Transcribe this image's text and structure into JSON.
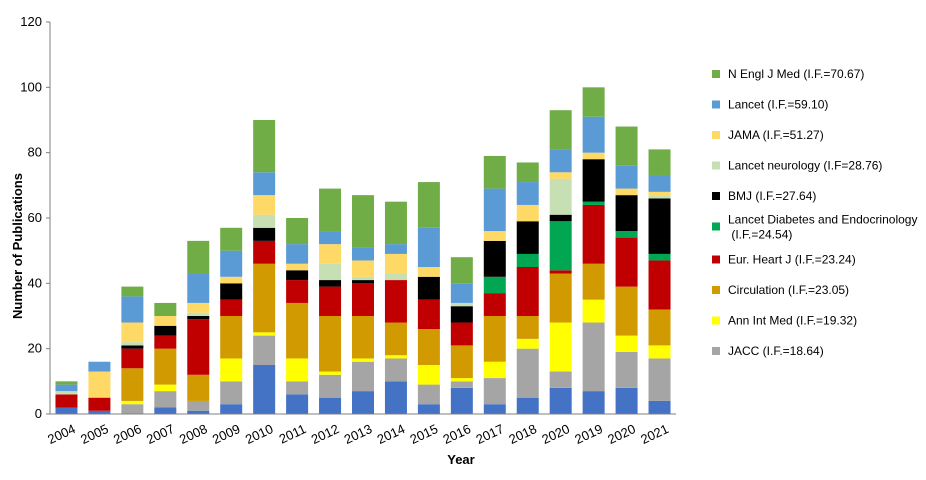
{
  "chart_data": {
    "type": "bar",
    "stacked": true,
    "xlabel": "Year",
    "ylabel": "Number of Publications",
    "ylim": [
      0,
      120
    ],
    "yticks": [
      0,
      20,
      40,
      60,
      80,
      100,
      120
    ],
    "grid": false,
    "legend_position": "right",
    "categories": [
      "2004",
      "2005",
      "2006",
      "2007",
      "2008",
      "2009",
      "2010",
      "2011",
      "2012",
      "2013",
      "2014",
      "2015",
      "2016",
      "2017",
      "2018",
      "2020",
      "2019",
      "2020",
      "2021"
    ],
    "series": [
      {
        "name": "JACC (I.F.=18.64)",
        "color": "#a5a5a5",
        "values": [
          0,
          0,
          3,
          5,
          3,
          7,
          9,
          4,
          7,
          9,
          7,
          6,
          2,
          8,
          15,
          5,
          21,
          11,
          13
        ]
      },
      {
        "name": "Ann Int Med (I.F.=19.32)",
        "color": "#ffff00",
        "values": [
          0,
          0,
          1,
          2,
          0,
          7,
          1,
          7,
          1,
          1,
          1,
          6,
          1,
          5,
          3,
          15,
          7,
          5,
          4
        ]
      },
      {
        "name": "Circulation (I.F.=23.05)",
        "color": "#d09a00",
        "values": [
          0,
          0,
          10,
          11,
          8,
          13,
          21,
          17,
          17,
          13,
          10,
          11,
          10,
          14,
          7,
          15,
          11,
          15,
          11
        ]
      },
      {
        "name": "Eur. Heart J (I.F.=23.24)",
        "color": "#c00000",
        "values": [
          4,
          4,
          6,
          4,
          17,
          5,
          7,
          7,
          9,
          10,
          13,
          9,
          7,
          7,
          15,
          1,
          18,
          15,
          15
        ]
      },
      {
        "name": "Lancet Diabetes and Endocrinology  (I.F.=24.54)",
        "color": "#00a651",
        "values": [
          0,
          0,
          0,
          0,
          0,
          0,
          0,
          0,
          0,
          0,
          0,
          0,
          0,
          5,
          4,
          15,
          1,
          2,
          2
        ]
      },
      {
        "name": "BMJ (I.F.=27.64)",
        "color": "#000000",
        "values": [
          0,
          0,
          1,
          3,
          1,
          5,
          4,
          3,
          2,
          1,
          0,
          7,
          5,
          11,
          10,
          2,
          13,
          11,
          17
        ]
      },
      {
        "name": "Lancet neurology (I.F=28.76)",
        "color": "#c6e0b4",
        "values": [
          1,
          0,
          1,
          0,
          1,
          0,
          4,
          0,
          5,
          1,
          2,
          0,
          1,
          0,
          0,
          11,
          0,
          0,
          1
        ]
      },
      {
        "name": "JAMA (I.F.=51.27)",
        "color": "#ffd966",
        "values": [
          0,
          8,
          6,
          3,
          3,
          2,
          6,
          2,
          6,
          5,
          6,
          3,
          0,
          3,
          5,
          2,
          2,
          2,
          1
        ]
      },
      {
        "name": "Lancet (I.F.=59.10)",
        "color": "#5b9bd5",
        "values": [
          2,
          3,
          8,
          0,
          9,
          8,
          7,
          6,
          4,
          4,
          3,
          12,
          6,
          13,
          7,
          7,
          11,
          7,
          5
        ]
      },
      {
        "name": "N Engl J Med (I.F.=70.67)",
        "color": "#70ad47",
        "values": [
          1,
          0,
          3,
          4,
          10,
          7,
          16,
          8,
          13,
          16,
          13,
          14,
          8,
          10,
          6,
          12,
          9,
          12,
          8
        ]
      },
      {
        "name": "",
        "color": "#4472c4",
        "values": [
          2,
          1,
          0,
          2,
          1,
          3,
          15,
          6,
          5,
          7,
          10,
          3,
          8,
          3,
          5,
          8,
          7,
          8,
          4
        ]
      }
    ],
    "legend": [
      "N Engl J Med (I.F.=70.67)",
      "Lancet (I.F.=59.10)",
      "JAMA (I.F.=51.27)",
      "Lancet neurology (I.F=28.76)",
      "BMJ (I.F.=27.64)",
      "Lancet Diabetes and Endocrinology  (I.F.=24.54)",
      "Eur. Heart J (I.F.=23.24)",
      "Circulation (I.F.=23.05)",
      "Ann Int Med (I.F.=19.32)",
      "JACC (I.F.=18.64)"
    ]
  }
}
